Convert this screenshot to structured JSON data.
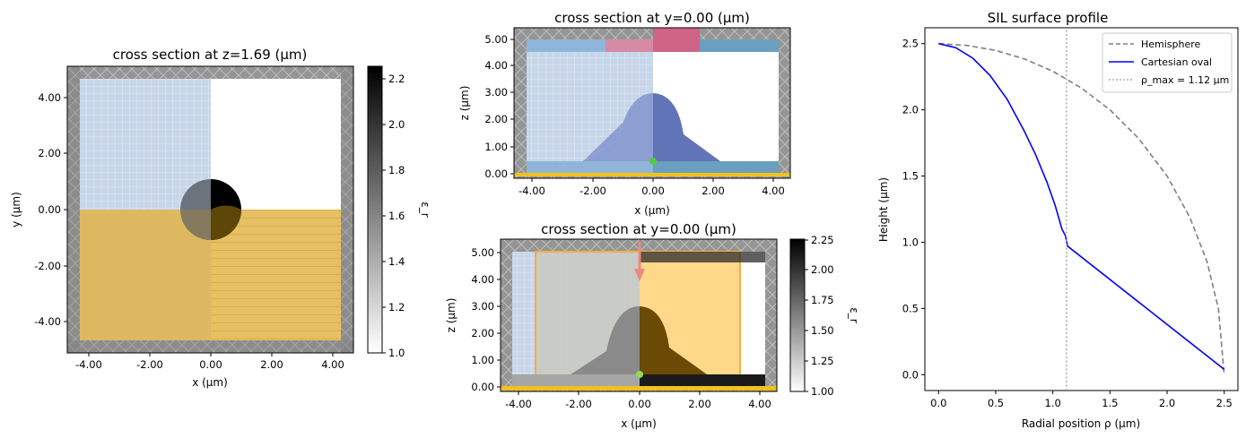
{
  "colors": {
    "hatch_gray": "#8f8f8f",
    "sim_blue": "#c8d6ea",
    "source_orange": "#e6b94e",
    "struct_blue": "#6274b8",
    "substrate_blue": "#6a9fbf",
    "mode_pink": "#cf6487",
    "monitor_orange": "#ffd88a",
    "point_green": "#4ccf3e",
    "gold_line": "#f2c21b",
    "hemisphere": "#7f7f7f",
    "oval": "#0000ff",
    "rho_line": "#b0b0b0"
  },
  "panels": {
    "p1": {
      "title": "cross section at z=1.69 (μm)",
      "xlabel": "x (μm)",
      "ylabel": "y (μm)",
      "xticks": [
        "-4.00",
        "-2.00",
        "0.00",
        "2.00",
        "4.00"
      ],
      "yticks": [
        "4.00",
        "2.00",
        "0.00",
        "-2.00",
        "-4.00"
      ],
      "colorbar": {
        "label": "ε_r",
        "ticks": [
          "2.2",
          "2.0",
          "1.8",
          "1.6",
          "1.4",
          "1.2",
          "1.0"
        ]
      }
    },
    "p2": {
      "title": "cross section at y=0.00 (μm)",
      "xlabel": "x (μm)",
      "ylabel": "z (μm)",
      "xticks": [
        "-4.00",
        "-2.00",
        "0.00",
        "2.00",
        "4.00"
      ],
      "yticks": [
        "5.00",
        "4.00",
        "3.00",
        "2.00",
        "1.00",
        "0.00"
      ]
    },
    "p3": {
      "title": "cross section at y=0.00 (μm)",
      "xlabel": "x (μm)",
      "ylabel": "z (μm)",
      "xticks": [
        "-4.00",
        "-2.00",
        "0.00",
        "2.00",
        "4.00"
      ],
      "yticks": [
        "5.00",
        "4.00",
        "3.00",
        "2.00",
        "1.00",
        "0.00"
      ],
      "colorbar": {
        "label": "ε_r",
        "ticks": [
          "2.25",
          "2.00",
          "1.75",
          "1.50",
          "1.25",
          "1.00"
        ]
      }
    }
  },
  "chart_data": {
    "type": "line",
    "title": "SIL surface profile",
    "xlabel": "Radial position ρ (μm)",
    "ylabel": "Height (μm)",
    "xlim": [
      -0.12,
      2.62
    ],
    "ylim": [
      -0.12,
      2.62
    ],
    "xticks": [
      "0.0",
      "0.5",
      "1.0",
      "1.5",
      "2.0",
      "2.5"
    ],
    "yticks": [
      "0.0",
      "0.5",
      "1.0",
      "1.5",
      "2.0",
      "2.5"
    ],
    "legend_position": "top-right",
    "series": [
      {
        "name": "Hemisphere",
        "style": "dashed",
        "x": [
          0.0,
          0.25,
          0.5,
          0.75,
          1.0,
          1.25,
          1.5,
          1.75,
          2.0,
          2.2,
          2.35,
          2.45,
          2.5
        ],
        "y": [
          2.5,
          2.487,
          2.449,
          2.385,
          2.291,
          2.165,
          2.0,
          1.785,
          1.5,
          1.187,
          0.853,
          0.497,
          0.0
        ]
      },
      {
        "name": "Cartesian oval",
        "style": "solid",
        "x": [
          0.0,
          0.15,
          0.3,
          0.45,
          0.6,
          0.75,
          0.85,
          0.95,
          1.02,
          1.08,
          1.11,
          1.13,
          2.5
        ],
        "y": [
          2.5,
          2.47,
          2.39,
          2.26,
          2.08,
          1.84,
          1.66,
          1.45,
          1.28,
          1.1,
          1.05,
          0.97,
          0.04
        ]
      },
      {
        "name": "ρ_max = 1.12 μm",
        "style": "dotted",
        "x": [
          1.12,
          1.12
        ],
        "y": [
          -0.12,
          2.62
        ]
      }
    ]
  }
}
